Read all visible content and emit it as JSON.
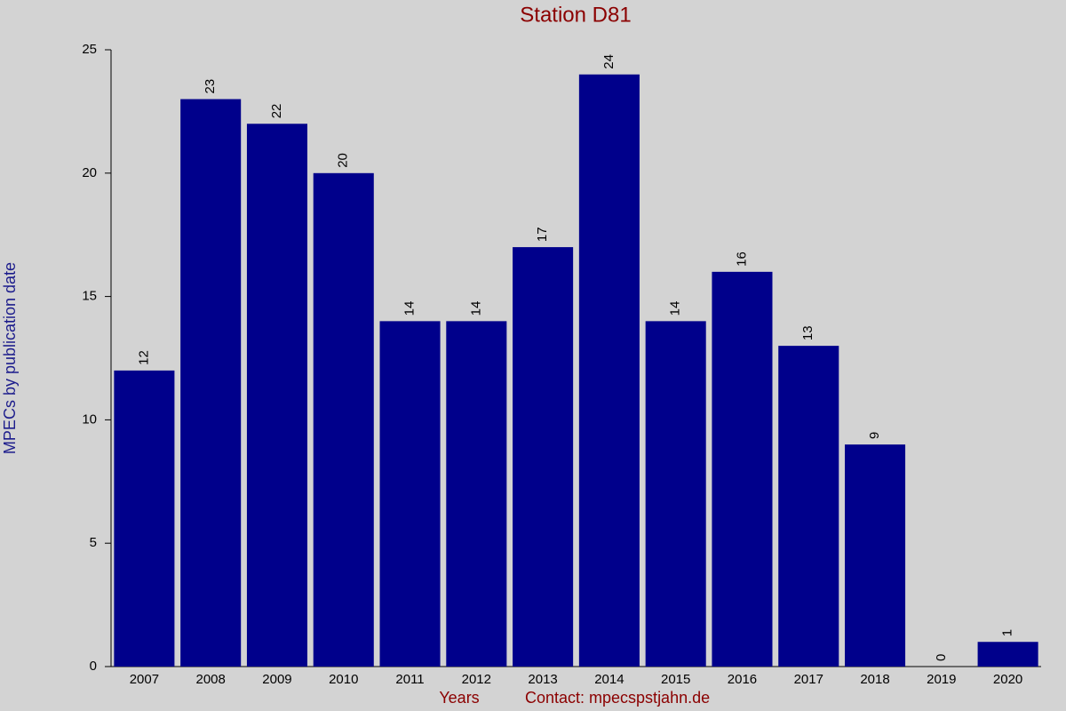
{
  "chart_data": {
    "type": "bar",
    "title": "Station D81",
    "y_label": "MPECs by publication date",
    "x_label": "Years",
    "note": "Contact: mpecspstjahn.de",
    "categories": [
      "2007",
      "2008",
      "2009",
      "2010",
      "2011",
      "2012",
      "2013",
      "2014",
      "2015",
      "2016",
      "2017",
      "2018",
      "2019",
      "2020"
    ],
    "values": [
      12,
      23,
      22,
      20,
      14,
      14,
      17,
      24,
      14,
      16,
      13,
      9,
      0,
      1
    ],
    "color": "#00008b",
    "ylim": [
      0,
      25
    ],
    "yticks": [
      0,
      5,
      10,
      15,
      20,
      25
    ],
    "grid": false
  }
}
